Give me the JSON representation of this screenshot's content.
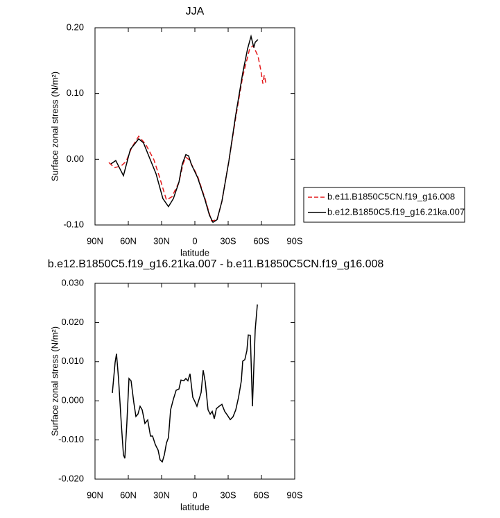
{
  "chart_data": [
    {
      "type": "line",
      "title": "JJA",
      "xlabel": "latitude",
      "ylabel": "Surface zonal stress (N/m²)",
      "xlim": [
        90,
        -90
      ],
      "ylim": [
        -0.1,
        0.2
      ],
      "xticks": [
        {
          "value": 90,
          "label": "90N"
        },
        {
          "value": 60,
          "label": "60N"
        },
        {
          "value": 30,
          "label": "30N"
        },
        0,
        {
          "value": -30,
          "label": "30S"
        },
        {
          "value": -60,
          "label": "60S"
        },
        {
          "value": -90,
          "label": "90S"
        }
      ],
      "yticks": [
        {
          "value": -0.1,
          "label": "-0.10"
        },
        {
          "value": 0,
          "label": "0.00"
        },
        {
          "value": 0.1,
          "label": "0.10"
        },
        {
          "value": 0.2,
          "label": "0.20"
        }
      ],
      "legend": "right",
      "series": [
        {
          "name": "b.e11.B1850C5CN.f19_g16.008",
          "color": "#e31a1c",
          "dash": true,
          "x": [
            77.5,
            72.5,
            66.3,
            61.9,
            56.9,
            50.6,
            44.4,
            36.9,
            31.9,
            25.6,
            20.6,
            14.4,
            10.6,
            8.1,
            5,
            -2.5,
            -9.4,
            -15,
            -20,
            -24.4,
            -30.6,
            -36.9,
            -43.1,
            -49.4,
            -52.5,
            -56.9,
            -59.4,
            -61.3,
            -62.5,
            -64.4
          ],
          "values": [
            -0.005,
            -0.013,
            -0.01,
            -0.003,
            0.018,
            0.035,
            0.023,
            -0.001,
            -0.027,
            -0.062,
            -0.057,
            -0.035,
            -0.007,
            0.003,
            -0.001,
            -0.026,
            -0.061,
            -0.094,
            -0.092,
            -0.064,
            -0.003,
            0.064,
            0.126,
            0.168,
            0.173,
            0.157,
            0.136,
            0.115,
            0.128,
            0.113
          ]
        },
        {
          "name": "b.e12.B1850C5.f19_g16.21ka.007",
          "color": "#000000",
          "dash": false,
          "x": [
            75.6,
            71.3,
            64.4,
            58.1,
            50.6,
            46.3,
            41.3,
            35,
            28.8,
            23.8,
            19.4,
            14.4,
            11.3,
            8.1,
            5.6,
            3.1,
            -2.5,
            -8.8,
            -13.1,
            -16.3,
            -20,
            -24.4,
            -30.6,
            -36.9,
            -43.1,
            -47.5,
            -50.6,
            -53.1,
            -54.4,
            -56.9
          ],
          "values": [
            -0.007,
            -0.002,
            -0.025,
            0.015,
            0.031,
            0.025,
            0.004,
            -0.022,
            -0.06,
            -0.072,
            -0.06,
            -0.035,
            -0.007,
            0.007,
            0.005,
            -0.008,
            -0.028,
            -0.06,
            -0.085,
            -0.096,
            -0.092,
            -0.064,
            -0.003,
            0.068,
            0.131,
            0.168,
            0.187,
            0.17,
            0.178,
            0.182
          ]
        }
      ]
    },
    {
      "type": "line",
      "title": "b.e12.B1850C5.f19_g16.21ka.007 - b.e11.B1850C5CN.f19_g16.008",
      "xlabel": "latitude",
      "ylabel": "Surface zonal stress (N/m²)",
      "xlim": [
        90,
        -90
      ],
      "ylim": [
        -0.02,
        0.03
      ],
      "xticks": [
        {
          "value": 90,
          "label": "90N"
        },
        {
          "value": 60,
          "label": "60N"
        },
        {
          "value": 30,
          "label": "30N"
        },
        0,
        {
          "value": -30,
          "label": "30S"
        },
        {
          "value": -60,
          "label": "60S"
        },
        {
          "value": -90,
          "label": "90S"
        }
      ],
      "yticks": [
        {
          "value": -0.02,
          "label": "-0.020"
        },
        {
          "value": -0.01,
          "label": "-0.010"
        },
        {
          "value": 0,
          "label": "0.000"
        },
        {
          "value": 0.01,
          "label": "0.010"
        },
        {
          "value": 0.02,
          "label": "0.020"
        },
        {
          "value": 0.03,
          "label": "0.030"
        }
      ],
      "color": "#000000",
      "x": [
        74.4,
        71.9,
        70.6,
        68.8,
        66.3,
        64.4,
        63.1,
        61.3,
        59.4,
        57.5,
        55,
        53.1,
        51.3,
        49.4,
        47.5,
        45,
        42.5,
        40,
        38.1,
        35.6,
        33.1,
        31.3,
        29.4,
        27.5,
        25.6,
        23.8,
        21.9,
        19.4,
        16.9,
        14.4,
        12.5,
        10,
        8.1,
        6.3,
        4.4,
        3.1,
        1.9,
        0,
        -1.9,
        -3.8,
        -5.6,
        -7.5,
        -9.4,
        -11.9,
        -13.8,
        -15.6,
        -17.5,
        -19.4,
        -21.9,
        -24.4,
        -26.9,
        -29.4,
        -31.9,
        -34.4,
        -36.9,
        -39.4,
        -41.9,
        -43.1,
        -45,
        -46.9,
        -48.1,
        -50,
        -51.9,
        -53.1,
        -54.4,
        -56.3
      ],
      "values": [
        0.002,
        0.0098,
        0.012,
        0.0057,
        -0.0058,
        -0.0138,
        -0.0147,
        -0.0058,
        0.0057,
        0.0051,
        -0.0005,
        -0.004,
        -0.0034,
        -0.0014,
        -0.0023,
        -0.0058,
        -0.0049,
        -0.009,
        -0.009,
        -0.0112,
        -0.0126,
        -0.0151,
        -0.0156,
        -0.0138,
        -0.0108,
        -0.0094,
        -0.0023,
        0.0004,
        0.0027,
        0.003,
        0.0053,
        0.0051,
        0.0057,
        0.0051,
        0.0069,
        0.0039,
        0.0009,
        -0.0002,
        -0.0014,
        0.0004,
        0.0021,
        0.0078,
        0.0048,
        -0.0023,
        -0.0034,
        -0.0027,
        -0.0046,
        -0.002,
        -0.0014,
        -0.0009,
        -0.0027,
        -0.0037,
        -0.0048,
        -0.0041,
        -0.0023,
        0.0009,
        0.0051,
        0.0101,
        0.0105,
        0.0128,
        0.0168,
        0.0167,
        -0.0014,
        0.0083,
        0.0181,
        0.0246
      ]
    }
  ]
}
